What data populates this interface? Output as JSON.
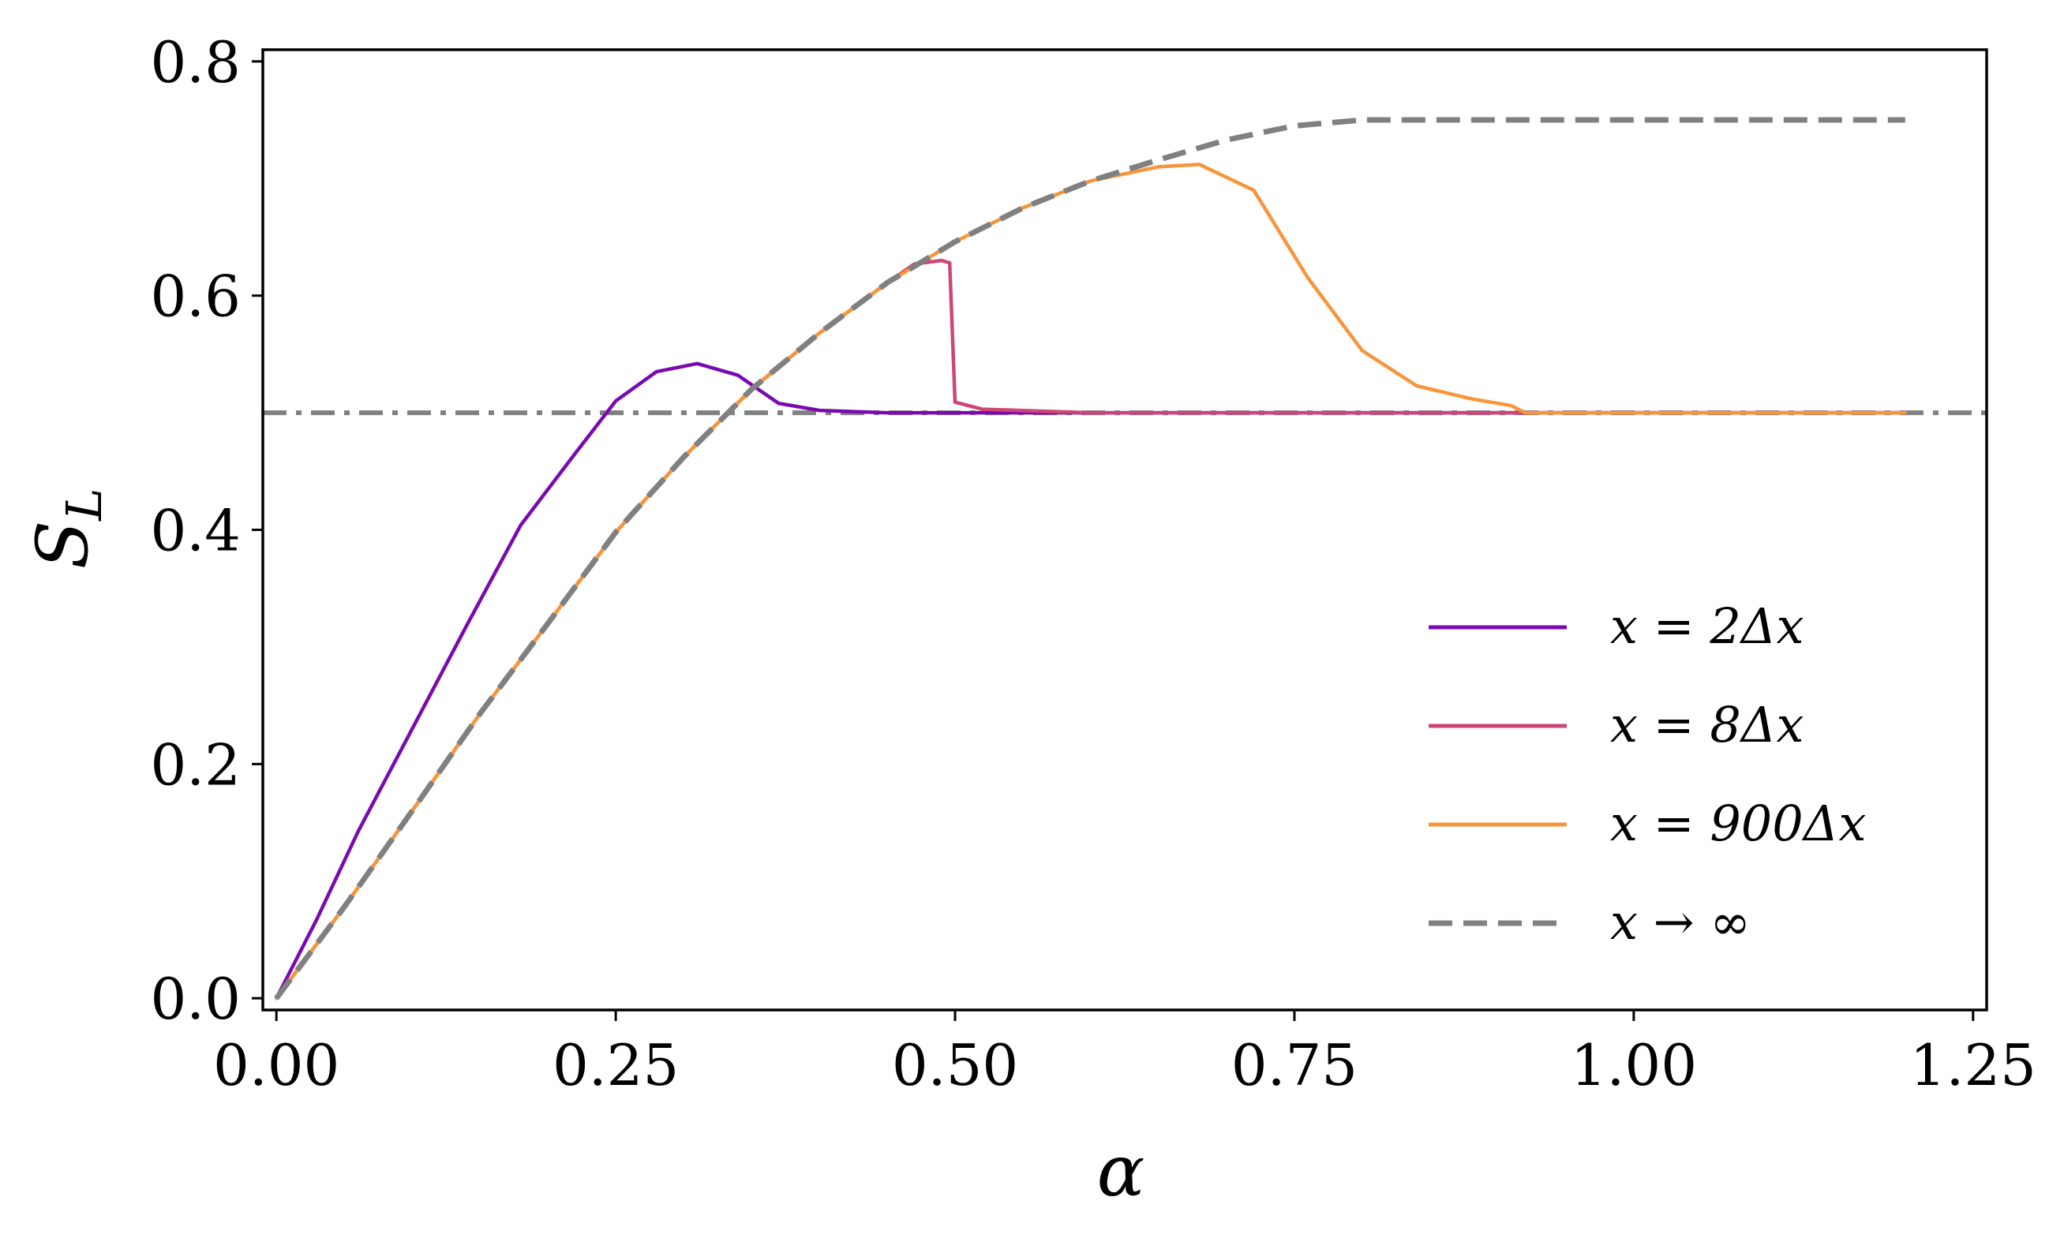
{
  "chart_data": {
    "type": "line",
    "xlabel": "α",
    "ylabel": "S_L",
    "xlim": [
      -0.01,
      1.26
    ],
    "ylim": [
      -0.01,
      0.81
    ],
    "xticks": [
      0.0,
      0.25,
      0.5,
      0.75,
      1.0,
      1.25
    ],
    "xtick_labels": [
      "0.00",
      "0.25",
      "0.50",
      "0.75",
      "1.00",
      "1.25"
    ],
    "yticks": [
      0.0,
      0.2,
      0.4,
      0.6,
      0.8
    ],
    "ytick_labels": [
      "0.0",
      "0.2",
      "0.4",
      "0.6",
      "0.8"
    ],
    "legend_position": "lower-right",
    "grid": false,
    "series": [
      {
        "name": "x = 2Δx",
        "color": "#7a0ab0",
        "style": "solid",
        "x": [
          0.0,
          0.03,
          0.06,
          0.1,
          0.14,
          0.18,
          0.22,
          0.25,
          0.28,
          0.31,
          0.34,
          0.37,
          0.4,
          0.45,
          0.5,
          0.6,
          0.8,
          1.0,
          1.2
        ],
        "y": [
          0.0,
          0.068,
          0.142,
          0.23,
          0.318,
          0.404,
          0.465,
          0.51,
          0.535,
          0.542,
          0.532,
          0.508,
          0.502,
          0.5,
          0.5,
          0.5,
          0.5,
          0.5,
          0.5
        ]
      },
      {
        "name": "x = 8Δx",
        "color": "#cc4677",
        "style": "solid",
        "x": [
          0.0,
          0.05,
          0.1,
          0.15,
          0.2,
          0.25,
          0.3,
          0.35,
          0.4,
          0.45,
          0.47,
          0.49,
          0.496,
          0.5,
          0.52,
          0.6,
          0.8,
          1.0,
          1.2
        ],
        "y": [
          0.0,
          0.078,
          0.16,
          0.243,
          0.32,
          0.398,
          0.462,
          0.52,
          0.568,
          0.611,
          0.627,
          0.63,
          0.628,
          0.509,
          0.503,
          0.5,
          0.5,
          0.5,
          0.5
        ]
      },
      {
        "name": "x = 900Δx",
        "color": "#f7953b",
        "style": "solid",
        "x": [
          0.0,
          0.05,
          0.1,
          0.15,
          0.2,
          0.25,
          0.3,
          0.35,
          0.4,
          0.45,
          0.5,
          0.55,
          0.6,
          0.65,
          0.68,
          0.72,
          0.76,
          0.8,
          0.84,
          0.88,
          0.91,
          0.92,
          1.0,
          1.2
        ],
        "y": [
          0.0,
          0.078,
          0.16,
          0.243,
          0.32,
          0.398,
          0.462,
          0.52,
          0.568,
          0.611,
          0.646,
          0.675,
          0.698,
          0.71,
          0.712,
          0.69,
          0.615,
          0.553,
          0.523,
          0.512,
          0.506,
          0.5,
          0.5,
          0.5
        ]
      },
      {
        "name": "x → ∞",
        "color": "#808080",
        "style": "dashed",
        "x": [
          0.0,
          0.05,
          0.1,
          0.15,
          0.2,
          0.25,
          0.3,
          0.35,
          0.4,
          0.45,
          0.5,
          0.55,
          0.6,
          0.65,
          0.7,
          0.75,
          0.8,
          0.9,
          1.0,
          1.1,
          1.2
        ],
        "y": [
          0.0,
          0.078,
          0.16,
          0.243,
          0.32,
          0.398,
          0.462,
          0.52,
          0.568,
          0.611,
          0.646,
          0.675,
          0.698,
          0.716,
          0.733,
          0.745,
          0.75,
          0.75,
          0.75,
          0.75,
          0.75
        ]
      }
    ],
    "reference_lines": [
      {
        "orientation": "horizontal",
        "y": 0.5,
        "color": "#808080",
        "style": "dash-dot"
      }
    ]
  }
}
